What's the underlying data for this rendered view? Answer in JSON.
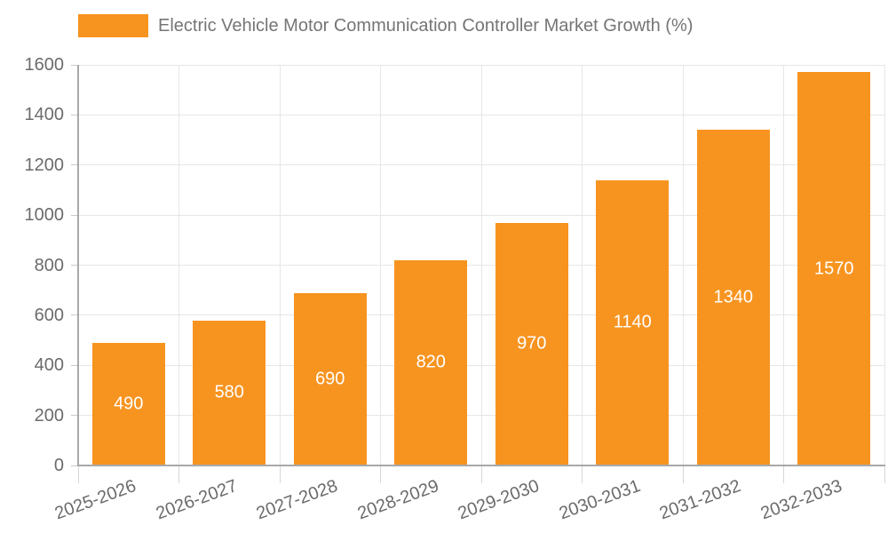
{
  "chart_data": {
    "type": "bar",
    "title": "Electric Vehicle Motor Communication Controller Market Growth (%)",
    "categories": [
      "2025-2026",
      "2026-2027",
      "2027-2028",
      "2028-2029",
      "2029-2030",
      "2030-2031",
      "2031-2032",
      "2032-2033"
    ],
    "values": [
      490,
      580,
      690,
      820,
      970,
      1140,
      1340,
      1570
    ],
    "data_labels": [
      "490",
      "580",
      "690",
      "820",
      "970",
      "1140",
      "1340",
      "1570"
    ],
    "xlabel": "",
    "ylabel": "",
    "ylim": [
      0,
      1600
    ],
    "ytick_step": 200,
    "ytick_labels": [
      "0",
      "200",
      "400",
      "600",
      "800",
      "1000",
      "1200",
      "1400",
      "1600"
    ],
    "grid": "on",
    "legend_position": "top",
    "colors": {
      "bar": "#f79420",
      "tick_text": "#6b6b6b",
      "legend_text": "#757575",
      "gridline": "#e6e6e6",
      "axis_line": "#a8a8a8",
      "data_label_text": "#ffffff",
      "background": "#ffffff"
    }
  }
}
